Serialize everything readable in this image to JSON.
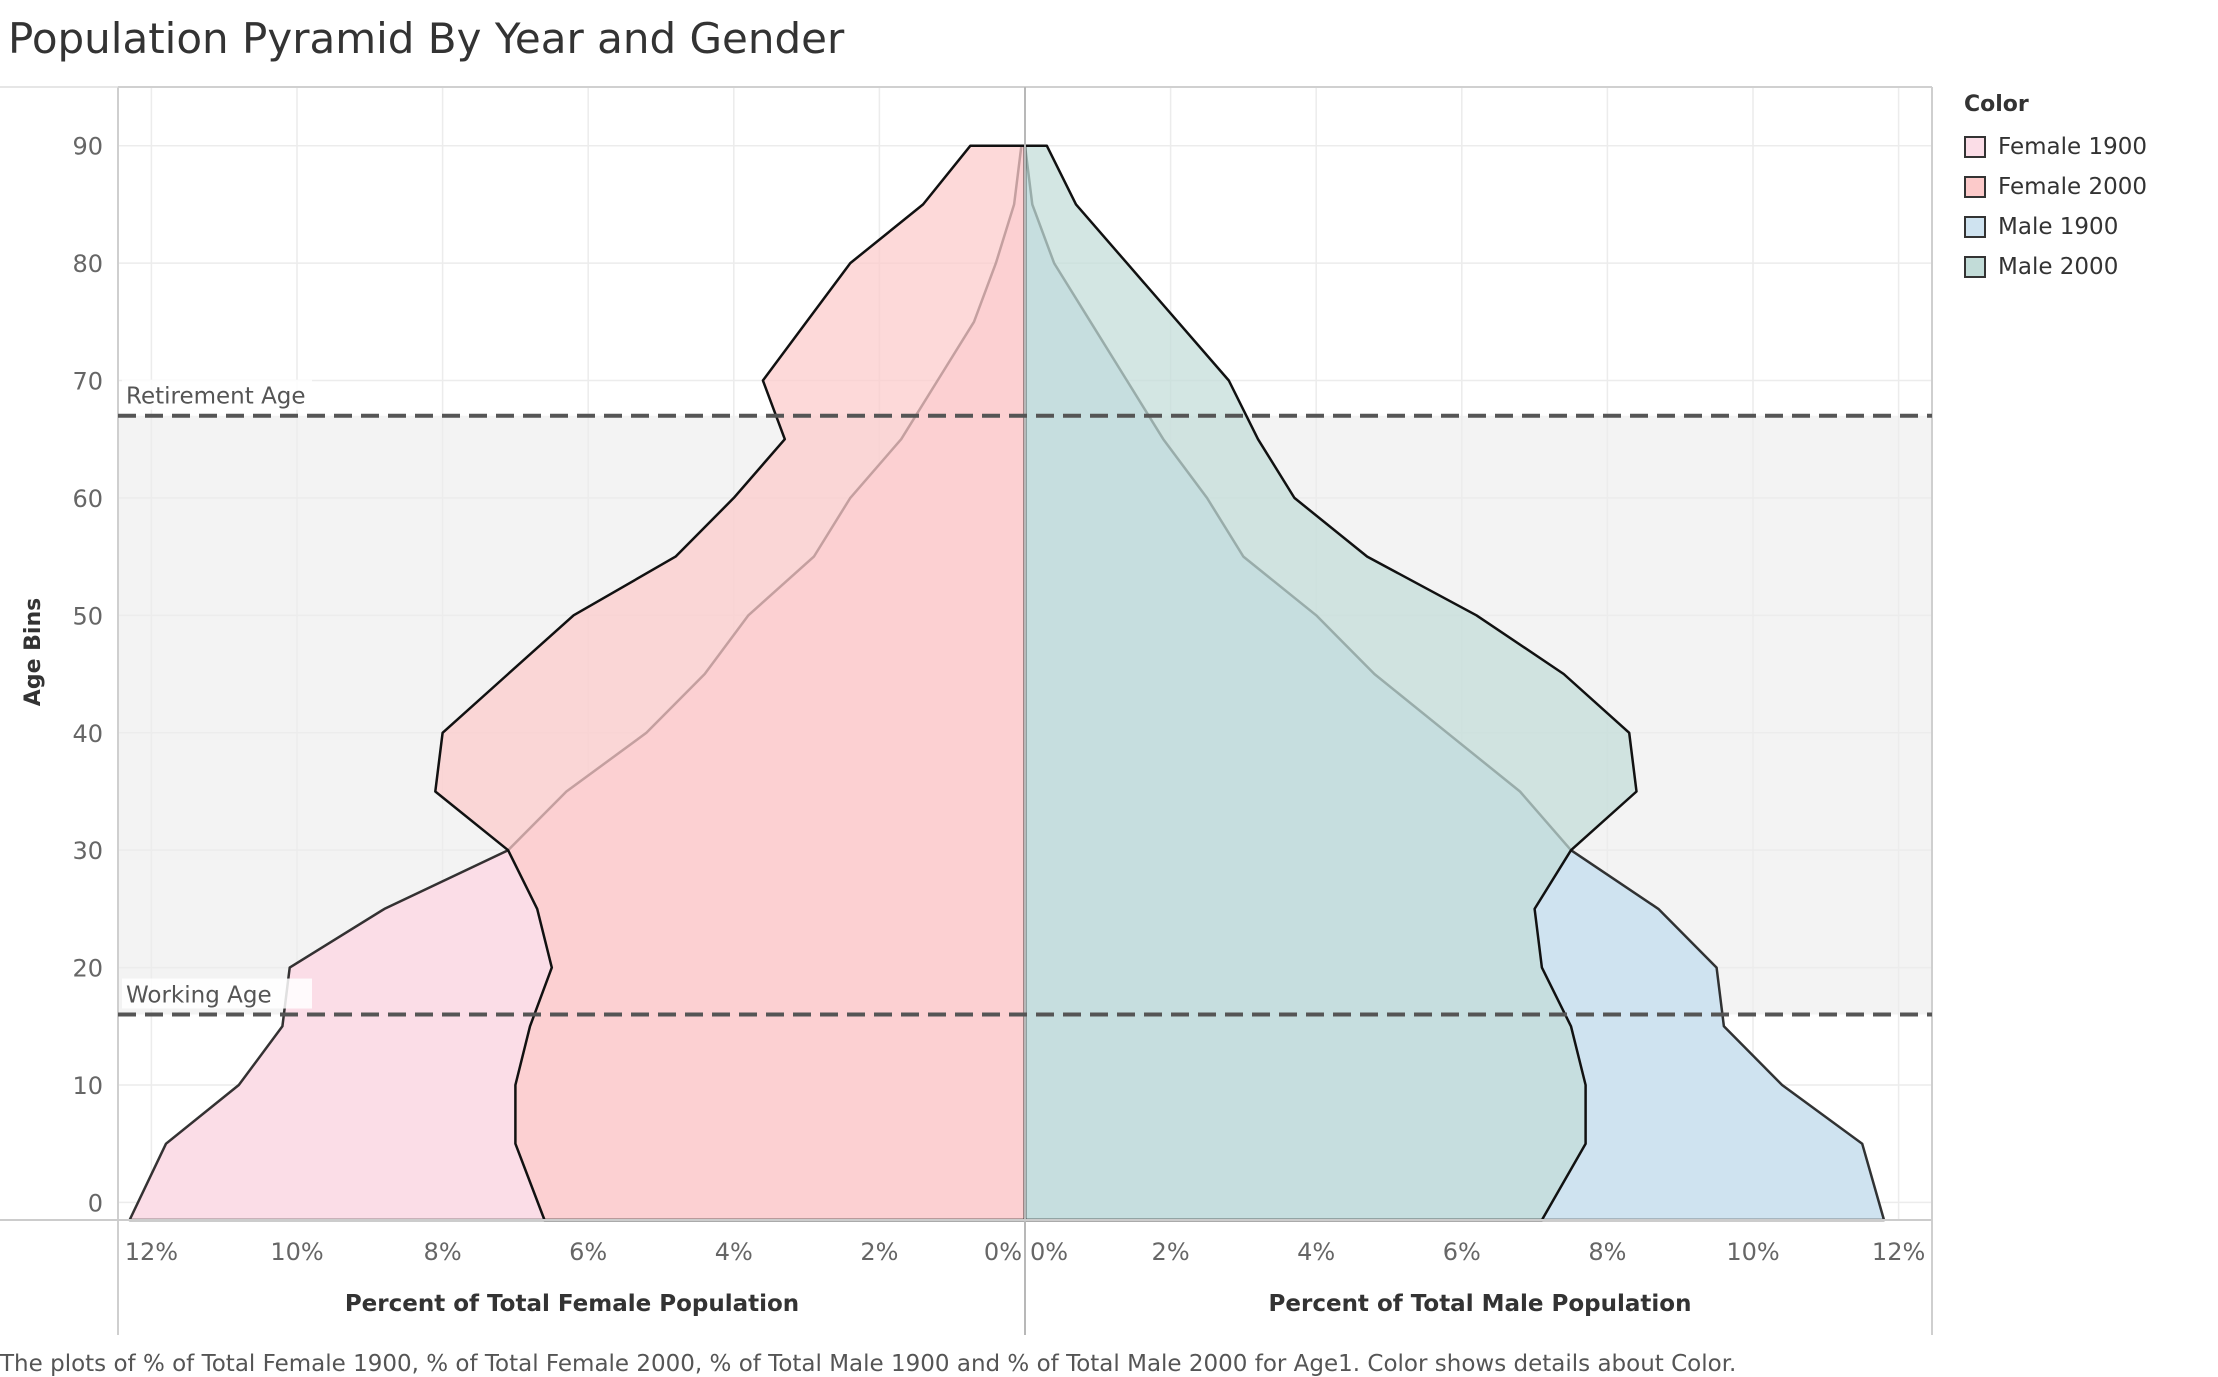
{
  "title": "Population Pyramid By Year and Gender",
  "caption": "The plots of % of Total Female 1900, % of Total Female 2000, % of Total Male 1900 and % of Total Male 2000 for Age1.  Color shows details about Color.",
  "legend": {
    "title": "Color",
    "items": [
      {
        "label": "Female 1900",
        "color": "#fbdde7"
      },
      {
        "label": "Female 2000",
        "color": "#fccaca"
      },
      {
        "label": "Male 1900",
        "color": "#cfe3f0"
      },
      {
        "label": "Male 2000",
        "color": "#c2dcd8"
      }
    ]
  },
  "chart_data": {
    "type": "area",
    "subtype": "population-pyramid",
    "ylabel": "Age Bins",
    "y_ticks": [
      0,
      10,
      20,
      30,
      40,
      50,
      60,
      70,
      80,
      90
    ],
    "y_range": [
      -1.5,
      95
    ],
    "age_bins": [
      -1.5,
      5,
      10,
      15,
      20,
      25,
      30,
      35,
      40,
      45,
      50,
      55,
      60,
      65,
      70,
      75,
      80,
      85,
      90
    ],
    "left_panel": {
      "xlabel": "Percent of Total Female Population",
      "x_ticks": [
        "12%",
        "10%",
        "8%",
        "6%",
        "4%",
        "2%",
        "0%"
      ],
      "x_range": [
        0,
        12.4
      ],
      "reversed": true
    },
    "right_panel": {
      "xlabel": "Percent of Total Male Population",
      "x_ticks": [
        "0%",
        "2%",
        "4%",
        "6%",
        "8%",
        "10%",
        "12%"
      ],
      "x_range": [
        0,
        12.4
      ]
    },
    "series": [
      {
        "name": "Female 1900",
        "side": "left",
        "color": "#fbdde7",
        "values": [
          12.3,
          11.8,
          10.8,
          10.2,
          10.1,
          8.8,
          7.1,
          6.3,
          5.2,
          4.4,
          3.8,
          2.9,
          2.4,
          1.7,
          1.2,
          0.7,
          0.4,
          0.15,
          0.05
        ]
      },
      {
        "name": "Female 2000",
        "side": "left",
        "color": "#fccaca",
        "values": [
          6.6,
          7.0,
          7.0,
          6.8,
          6.5,
          6.7,
          7.1,
          8.1,
          8.0,
          7.1,
          6.2,
          4.8,
          4.0,
          3.3,
          3.6,
          3.0,
          2.4,
          1.4,
          0.75
        ]
      },
      {
        "name": "Male 1900",
        "side": "right",
        "color": "#cfe3f0",
        "values": [
          11.8,
          11.5,
          10.4,
          9.6,
          9.5,
          8.7,
          7.5,
          6.8,
          5.8,
          4.8,
          4.0,
          3.0,
          2.5,
          1.9,
          1.4,
          0.9,
          0.4,
          0.1,
          0.0
        ]
      },
      {
        "name": "Male 2000",
        "side": "right",
        "color": "#c2dcd8",
        "values": [
          7.1,
          7.7,
          7.7,
          7.5,
          7.1,
          7.0,
          7.5,
          8.4,
          8.3,
          7.4,
          6.2,
          4.7,
          3.7,
          3.2,
          2.8,
          2.1,
          1.4,
          0.7,
          0.3
        ]
      }
    ],
    "reference_lines": [
      {
        "label": "Retirement Age",
        "y": 67
      },
      {
        "label": "Working Age",
        "y": 16
      }
    ],
    "reference_band": {
      "from": 16,
      "to": 67,
      "color": "#f3f3f3"
    },
    "grid": true
  }
}
